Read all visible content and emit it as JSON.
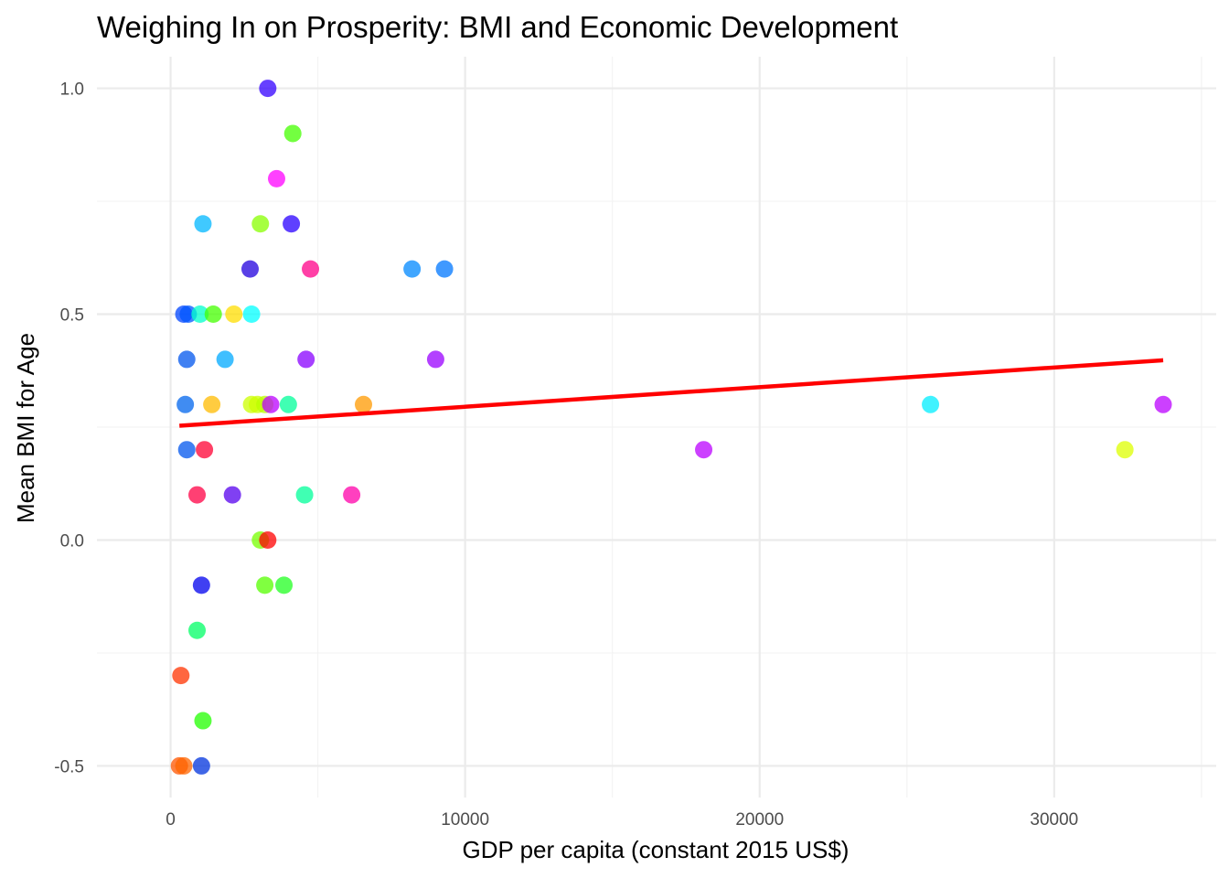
{
  "chart_data": {
    "type": "scatter",
    "title": "Weighing In on Prosperity: BMI and Economic Development",
    "xlabel": "GDP per capita (constant 2015 US$)",
    "ylabel": "Mean BMI for Age",
    "xlim": [
      -2500,
      35500
    ],
    "ylim": [
      -0.57,
      1.07
    ],
    "x_ticks": [
      0,
      10000,
      20000,
      30000
    ],
    "y_ticks": [
      -0.5,
      0.0,
      0.5,
      1.0
    ],
    "x_tick_labels": [
      "0",
      "10000",
      "20000",
      "30000"
    ],
    "y_tick_labels": [
      "-0.5",
      "0.0",
      "0.5",
      "1.0"
    ],
    "grid": true,
    "legend": "none",
    "point_opacity": 0.75,
    "points": [
      {
        "x": 3300,
        "y": 1.0,
        "color": "#3300ff"
      },
      {
        "x": 4150,
        "y": 0.9,
        "color": "#44ff00"
      },
      {
        "x": 3600,
        "y": 0.8,
        "color": "#ff00ff"
      },
      {
        "x": 1100,
        "y": 0.7,
        "color": "#00b7ff"
      },
      {
        "x": 3050,
        "y": 0.7,
        "color": "#88ff00"
      },
      {
        "x": 4100,
        "y": 0.7,
        "color": "#2a00ff"
      },
      {
        "x": 2700,
        "y": 0.6,
        "color": "#2200dd"
      },
      {
        "x": 4750,
        "y": 0.6,
        "color": "#ff0088"
      },
      {
        "x": 8200,
        "y": 0.6,
        "color": "#0088ff"
      },
      {
        "x": 9300,
        "y": 0.6,
        "color": "#0077ff"
      },
      {
        "x": 450,
        "y": 0.5,
        "color": "#0044ff"
      },
      {
        "x": 600,
        "y": 0.5,
        "color": "#0055ff"
      },
      {
        "x": 1000,
        "y": 0.5,
        "color": "#00ffcc"
      },
      {
        "x": 1450,
        "y": 0.5,
        "color": "#44ff00"
      },
      {
        "x": 2150,
        "y": 0.5,
        "color": "#ffdd00"
      },
      {
        "x": 2750,
        "y": 0.5,
        "color": "#00ffff"
      },
      {
        "x": 550,
        "y": 0.4,
        "color": "#0055ee"
      },
      {
        "x": 1850,
        "y": 0.4,
        "color": "#00aaff"
      },
      {
        "x": 4600,
        "y": 0.4,
        "color": "#8800ff"
      },
      {
        "x": 9000,
        "y": 0.4,
        "color": "#9900ff"
      },
      {
        "x": 500,
        "y": 0.3,
        "color": "#0066ee"
      },
      {
        "x": 1400,
        "y": 0.3,
        "color": "#ffbb00"
      },
      {
        "x": 2750,
        "y": 0.3,
        "color": "#ccff00"
      },
      {
        "x": 2950,
        "y": 0.3,
        "color": "#ccff00"
      },
      {
        "x": 3200,
        "y": 0.3,
        "color": "#bbff00"
      },
      {
        "x": 3400,
        "y": 0.3,
        "color": "#bb00ff"
      },
      {
        "x": 4000,
        "y": 0.3,
        "color": "#00ff99"
      },
      {
        "x": 6550,
        "y": 0.3,
        "color": "#ff9900"
      },
      {
        "x": 25800,
        "y": 0.3,
        "color": "#00eeff"
      },
      {
        "x": 33700,
        "y": 0.3,
        "color": "#bb00ff"
      },
      {
        "x": 550,
        "y": 0.2,
        "color": "#0055ee"
      },
      {
        "x": 1150,
        "y": 0.2,
        "color": "#ff0033"
      },
      {
        "x": 18100,
        "y": 0.2,
        "color": "#bb00ff"
      },
      {
        "x": 32400,
        "y": 0.2,
        "color": "#ddff00"
      },
      {
        "x": 900,
        "y": 0.1,
        "color": "#ff0044"
      },
      {
        "x": 2100,
        "y": 0.1,
        "color": "#5500ee"
      },
      {
        "x": 4550,
        "y": 0.1,
        "color": "#00ff99"
      },
      {
        "x": 6150,
        "y": 0.1,
        "color": "#ff00aa"
      },
      {
        "x": 3050,
        "y": 0.0,
        "color": "#77ff00"
      },
      {
        "x": 3300,
        "y": 0.0,
        "color": "#ff0000"
      },
      {
        "x": 1050,
        "y": -0.1,
        "color": "#0000ee"
      },
      {
        "x": 3200,
        "y": -0.1,
        "color": "#55ff00"
      },
      {
        "x": 3850,
        "y": -0.1,
        "color": "#22ff22"
      },
      {
        "x": 900,
        "y": -0.2,
        "color": "#00ff66"
      },
      {
        "x": 350,
        "y": -0.3,
        "color": "#ff3300"
      },
      {
        "x": 1100,
        "y": -0.4,
        "color": "#22ff00"
      },
      {
        "x": 300,
        "y": -0.5,
        "color": "#ff5500"
      },
      {
        "x": 450,
        "y": -0.5,
        "color": "#ff6600"
      },
      {
        "x": 1050,
        "y": -0.5,
        "color": "#0033dd"
      }
    ],
    "trend_line": {
      "color": "#ff0000",
      "x": [
        300,
        33700
      ],
      "y": [
        0.253,
        0.398
      ]
    }
  }
}
